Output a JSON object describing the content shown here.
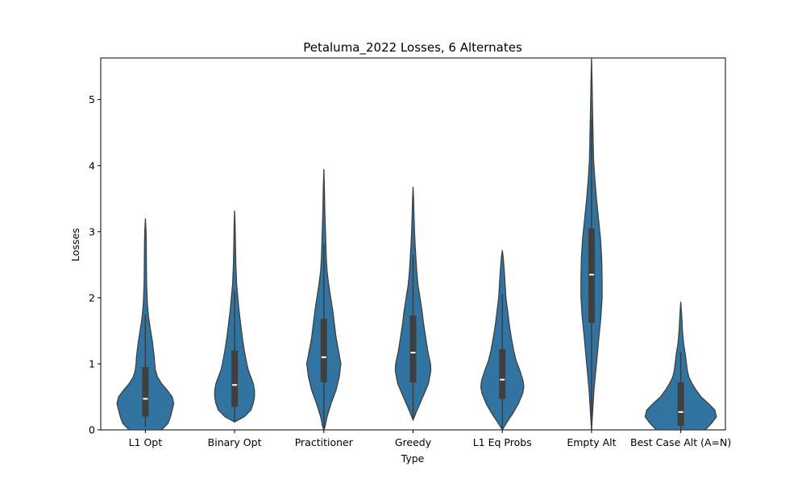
{
  "chart_data": {
    "type": "violin",
    "title": "Petaluma_2022 Losses, 6 Alternates",
    "xlabel": "Type",
    "ylabel": "Losses",
    "ylim": [
      0,
      5.63
    ],
    "yticks": [
      "0",
      "1",
      "2",
      "3",
      "4",
      "5"
    ],
    "color": "#3274a1",
    "edge_color": "#3f3f3f",
    "box_color": "#3f3f3f",
    "median_color": "#ffffff",
    "categories": [
      "L1 Opt",
      "Binary Opt",
      "Practitioner",
      "Greedy",
      "L1 Eq Probs",
      "Empty Alt",
      "Best Case Alt (A=N)"
    ],
    "violins": [
      {
        "name": "L1 Opt",
        "q1": 0.2,
        "median": 0.47,
        "q3": 0.95,
        "whisker_low": 0.05,
        "whisker_high": 1.75,
        "profile": [
          [
            0.0,
            0.2
          ],
          [
            0.1,
            0.28
          ],
          [
            0.2,
            0.31
          ],
          [
            0.3,
            0.33
          ],
          [
            0.4,
            0.35
          ],
          [
            0.5,
            0.33
          ],
          [
            0.6,
            0.27
          ],
          [
            0.7,
            0.2
          ],
          [
            0.8,
            0.15
          ],
          [
            0.9,
            0.125
          ],
          [
            1.0,
            0.115
          ],
          [
            1.1,
            0.11
          ],
          [
            1.2,
            0.1
          ],
          [
            1.35,
            0.085
          ],
          [
            1.5,
            0.065
          ],
          [
            1.7,
            0.04
          ],
          [
            1.9,
            0.025
          ],
          [
            2.2,
            0.015
          ],
          [
            2.5,
            0.012
          ],
          [
            2.8,
            0.011
          ],
          [
            3.0,
            0.008
          ],
          [
            3.2,
            0.0
          ]
        ]
      },
      {
        "name": "Binary Opt",
        "q1": 0.35,
        "median": 0.68,
        "q3": 1.2,
        "whisker_low": 0.12,
        "whisker_high": 2.1,
        "profile": [
          [
            0.12,
            0.0
          ],
          [
            0.2,
            0.12
          ],
          [
            0.3,
            0.2
          ],
          [
            0.4,
            0.23
          ],
          [
            0.5,
            0.245
          ],
          [
            0.6,
            0.245
          ],
          [
            0.7,
            0.23
          ],
          [
            0.8,
            0.2
          ],
          [
            0.9,
            0.17
          ],
          [
            1.0,
            0.15
          ],
          [
            1.2,
            0.12
          ],
          [
            1.4,
            0.095
          ],
          [
            1.6,
            0.075
          ],
          [
            1.8,
            0.055
          ],
          [
            2.0,
            0.04
          ],
          [
            2.2,
            0.025
          ],
          [
            2.5,
            0.015
          ],
          [
            2.8,
            0.01
          ],
          [
            3.1,
            0.006
          ],
          [
            3.32,
            0.0
          ]
        ]
      },
      {
        "name": "Practitioner",
        "q1": 0.72,
        "median": 1.1,
        "q3": 1.68,
        "whisker_low": 0.0,
        "whisker_high": 2.82,
        "profile": [
          [
            0.0,
            0.0
          ],
          [
            0.05,
            0.015
          ],
          [
            0.2,
            0.04
          ],
          [
            0.4,
            0.09
          ],
          [
            0.6,
            0.15
          ],
          [
            0.8,
            0.19
          ],
          [
            1.0,
            0.21
          ],
          [
            1.2,
            0.18
          ],
          [
            1.4,
            0.15
          ],
          [
            1.6,
            0.13
          ],
          [
            1.8,
            0.11
          ],
          [
            2.0,
            0.085
          ],
          [
            2.2,
            0.06
          ],
          [
            2.4,
            0.04
          ],
          [
            2.6,
            0.03
          ],
          [
            2.8,
            0.025
          ],
          [
            3.0,
            0.02
          ],
          [
            3.3,
            0.012
          ],
          [
            3.6,
            0.008
          ],
          [
            3.95,
            0.0
          ]
        ]
      },
      {
        "name": "Greedy",
        "q1": 0.72,
        "median": 1.17,
        "q3": 1.73,
        "whisker_low": 0.18,
        "whisker_high": 2.65,
        "profile": [
          [
            0.15,
            0.0
          ],
          [
            0.3,
            0.05
          ],
          [
            0.5,
            0.12
          ],
          [
            0.7,
            0.19
          ],
          [
            0.9,
            0.22
          ],
          [
            1.0,
            0.215
          ],
          [
            1.2,
            0.18
          ],
          [
            1.4,
            0.155
          ],
          [
            1.6,
            0.13
          ],
          [
            1.8,
            0.11
          ],
          [
            2.0,
            0.085
          ],
          [
            2.2,
            0.06
          ],
          [
            2.4,
            0.045
          ],
          [
            2.6,
            0.035
          ],
          [
            2.8,
            0.025
          ],
          [
            3.0,
            0.018
          ],
          [
            3.3,
            0.01
          ],
          [
            3.5,
            0.006
          ],
          [
            3.68,
            0.0
          ]
        ]
      },
      {
        "name": "L1 Eq Probs",
        "q1": 0.47,
        "median": 0.76,
        "q3": 1.22,
        "whisker_low": 0.0,
        "whisker_high": 2.05,
        "profile": [
          [
            0.0,
            0.0
          ],
          [
            0.1,
            0.05
          ],
          [
            0.25,
            0.13
          ],
          [
            0.4,
            0.2
          ],
          [
            0.55,
            0.25
          ],
          [
            0.65,
            0.265
          ],
          [
            0.75,
            0.255
          ],
          [
            0.9,
            0.215
          ],
          [
            1.05,
            0.17
          ],
          [
            1.2,
            0.14
          ],
          [
            1.4,
            0.11
          ],
          [
            1.6,
            0.085
          ],
          [
            1.8,
            0.065
          ],
          [
            2.0,
            0.045
          ],
          [
            2.2,
            0.035
          ],
          [
            2.4,
            0.025
          ],
          [
            2.6,
            0.012
          ],
          [
            2.72,
            0.0
          ]
        ]
      },
      {
        "name": "Empty Alt",
        "q1": 1.62,
        "median": 2.35,
        "q3": 3.05,
        "whisker_low": 0.0,
        "whisker_high": 4.7,
        "profile": [
          [
            0.0,
            0.0
          ],
          [
            0.2,
            0.01
          ],
          [
            0.6,
            0.03
          ],
          [
            1.0,
            0.06
          ],
          [
            1.4,
            0.09
          ],
          [
            1.7,
            0.115
          ],
          [
            2.0,
            0.13
          ],
          [
            2.3,
            0.13
          ],
          [
            2.6,
            0.125
          ],
          [
            2.9,
            0.11
          ],
          [
            3.2,
            0.085
          ],
          [
            3.5,
            0.06
          ],
          [
            3.8,
            0.04
          ],
          [
            4.1,
            0.025
          ],
          [
            4.4,
            0.02
          ],
          [
            4.7,
            0.015
          ],
          [
            5.0,
            0.01
          ],
          [
            5.3,
            0.006
          ],
          [
            5.63,
            0.0
          ]
        ]
      },
      {
        "name": "Best Case Alt (A=N)",
        "q1": 0.06,
        "median": 0.27,
        "q3": 0.72,
        "whisker_low": 0.0,
        "whisker_high": 1.18,
        "profile": [
          [
            0.0,
            0.3
          ],
          [
            0.1,
            0.38
          ],
          [
            0.2,
            0.44
          ],
          [
            0.3,
            0.42
          ],
          [
            0.4,
            0.34
          ],
          [
            0.5,
            0.25
          ],
          [
            0.6,
            0.19
          ],
          [
            0.7,
            0.14
          ],
          [
            0.8,
            0.1
          ],
          [
            0.9,
            0.08
          ],
          [
            1.0,
            0.07
          ],
          [
            1.15,
            0.055
          ],
          [
            1.3,
            0.035
          ],
          [
            1.5,
            0.02
          ],
          [
            1.7,
            0.012
          ],
          [
            1.94,
            0.0
          ]
        ]
      }
    ]
  }
}
